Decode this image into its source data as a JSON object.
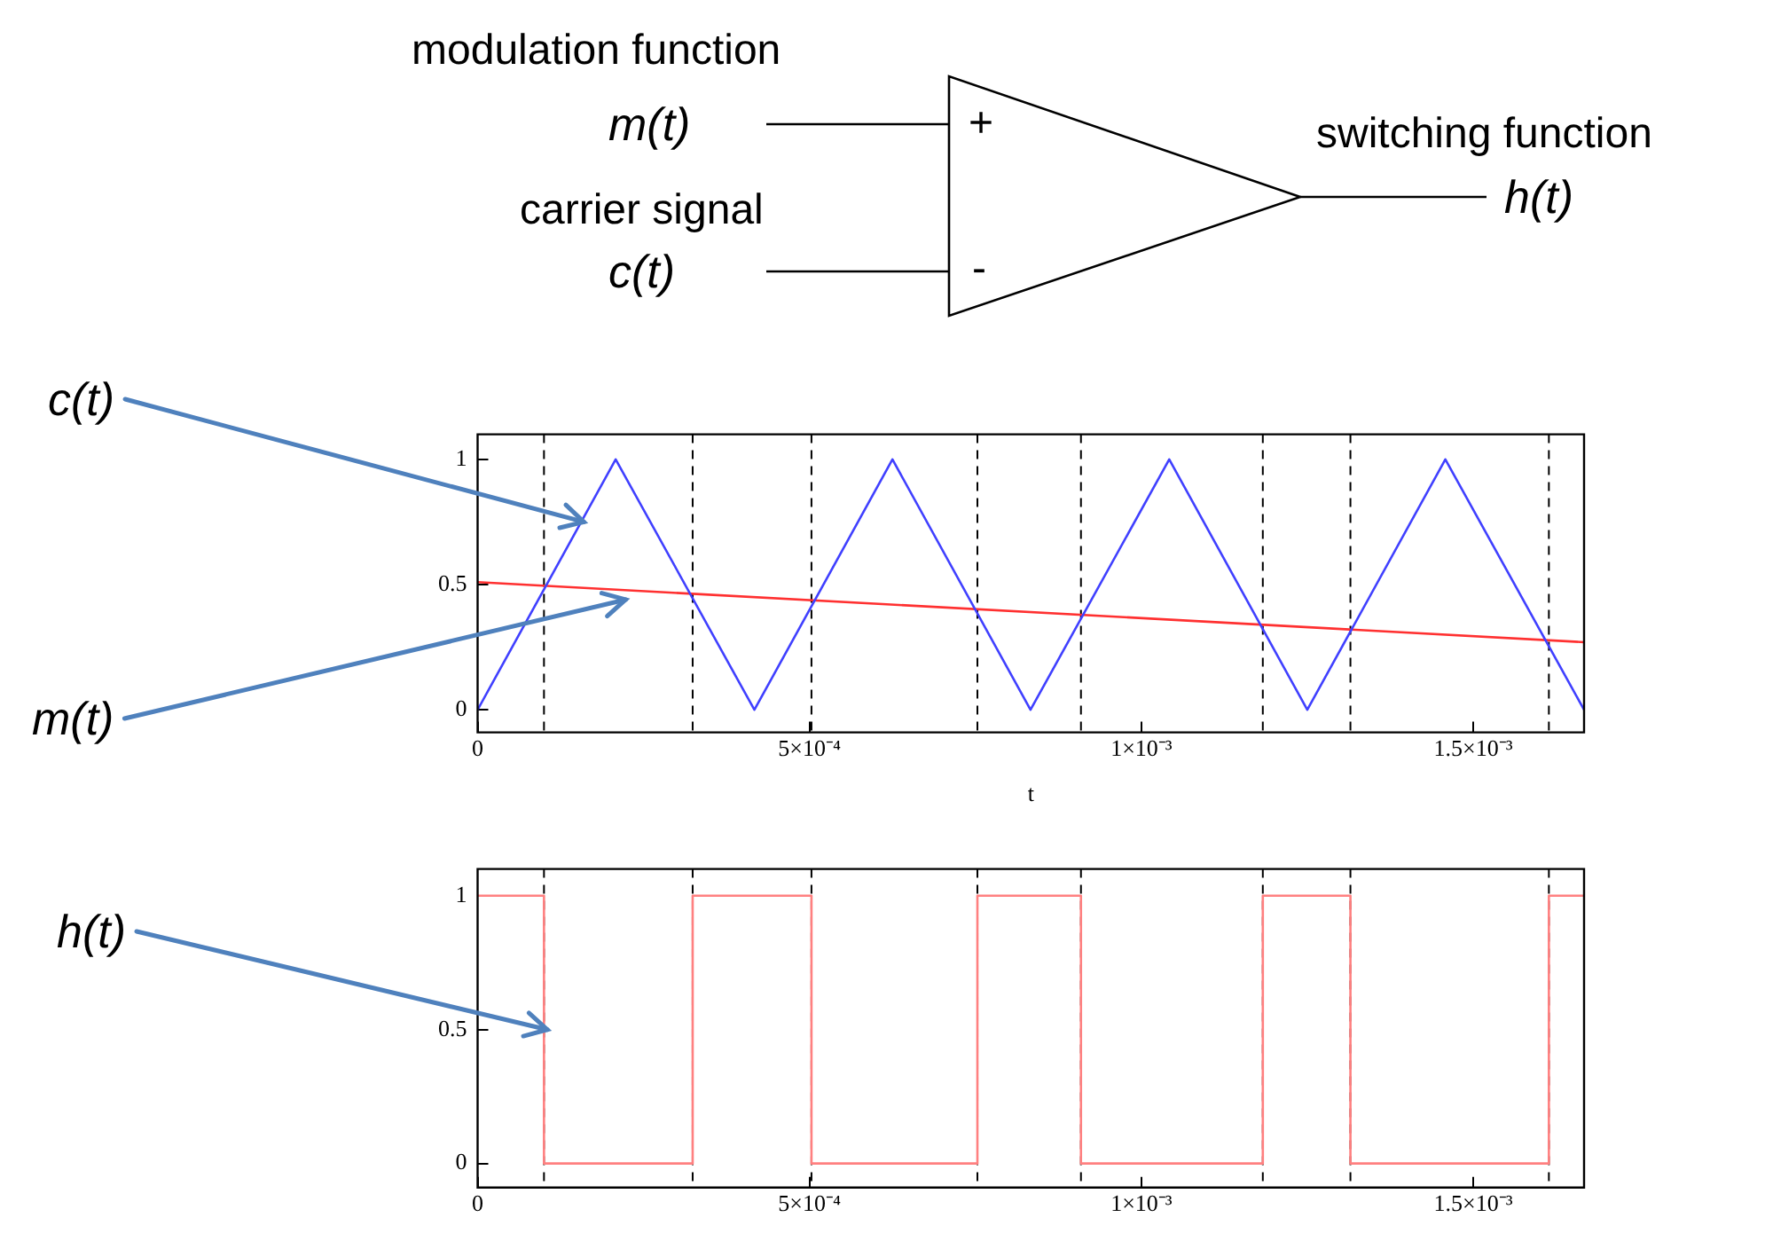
{
  "chart_data": [
    {
      "type": "other",
      "annotations": [
        "modulation function",
        "m(t)",
        "+",
        "carrier signal",
        "c(t)",
        "-",
        "switching function",
        "h(t)"
      ]
    },
    {
      "type": "line",
      "xlabel": "t",
      "xlim": [
        0,
        0.001667
      ],
      "ylim": [
        -0.09,
        1.1
      ],
      "xticks": [
        0,
        {
          "value": 0.0005,
          "label": "5×10⁻⁴"
        },
        {
          "value": 0.001,
          "label": "1×10⁻³"
        },
        {
          "value": 0.0015,
          "label": "1.5×10⁻³"
        }
      ],
      "yticks": [
        0,
        0.5,
        1
      ],
      "grid": false,
      "legend": false,
      "marker": "none",
      "line_style": "solid",
      "series": [
        {
          "color": "#4040ff",
          "x": [
            0,
            0.000208,
            0.000417,
            0.000625,
            0.000833,
            0.001042,
            0.00125,
            0.001458,
            0.001667
          ],
          "values": [
            0,
            1,
            0,
            1,
            0,
            1,
            0,
            1,
            0
          ]
        },
        {
          "color": "#ff3030",
          "x": [
            0,
            0.001667
          ],
          "values": [
            0.51,
            0.27
          ]
        }
      ],
      "ref_lines": [
        {
          "axis": "x",
          "value": 0.0001,
          "color": "#000000",
          "line_style": "dashed"
        },
        {
          "axis": "x",
          "value": 0.000324,
          "color": "#000000",
          "line_style": "dashed"
        },
        {
          "axis": "x",
          "value": 0.000503,
          "color": "#000000",
          "line_style": "dashed"
        },
        {
          "axis": "x",
          "value": 0.000753,
          "color": "#000000",
          "line_style": "dashed"
        },
        {
          "axis": "x",
          "value": 0.000909,
          "color": "#000000",
          "line_style": "dashed"
        },
        {
          "axis": "x",
          "value": 0.001183,
          "color": "#000000",
          "line_style": "dashed"
        },
        {
          "axis": "x",
          "value": 0.001315,
          "color": "#000000",
          "line_style": "dashed"
        },
        {
          "axis": "x",
          "value": 0.001614,
          "color": "#000000",
          "line_style": "dashed"
        }
      ],
      "annotations": [
        {
          "text": "c(t)",
          "x": 0.00016,
          "y": 0.75
        },
        {
          "text": "m(t)",
          "x": 0.000223,
          "y": 0.44
        }
      ]
    },
    {
      "type": "step",
      "xlim": [
        0,
        0.001667
      ],
      "ylim": [
        -0.09,
        1.1
      ],
      "xticks": [
        0,
        {
          "value": 0.0005,
          "label": "5×10⁻⁴"
        },
        {
          "value": 0.001,
          "label": "1×10⁻³"
        },
        {
          "value": 0.0015,
          "label": "1.5×10⁻³"
        }
      ],
      "yticks": [
        0,
        0.5,
        1
      ],
      "grid": false,
      "legend": false,
      "marker": "none",
      "line_style": "solid",
      "series": [
        {
          "color": "#ff8080",
          "x": [
            0,
            0.0001,
            0.000324,
            0.000503,
            0.000753,
            0.000909,
            0.001183,
            0.001315,
            0.001614,
            0.001667
          ],
          "values": [
            1,
            0,
            1,
            0,
            1,
            0,
            1,
            0,
            1,
            1
          ]
        }
      ],
      "ref_lines": [
        {
          "axis": "x",
          "value": 0.0001,
          "color": "#000000",
          "line_style": "dashed"
        },
        {
          "axis": "x",
          "value": 0.000324,
          "color": "#000000",
          "line_style": "dashed"
        },
        {
          "axis": "x",
          "value": 0.000503,
          "color": "#000000",
          "line_style": "dashed"
        },
        {
          "axis": "x",
          "value": 0.000753,
          "color": "#000000",
          "line_style": "dashed"
        },
        {
          "axis": "x",
          "value": 0.000909,
          "color": "#000000",
          "line_style": "dashed"
        },
        {
          "axis": "x",
          "value": 0.001183,
          "color": "#000000",
          "line_style": "dashed"
        },
        {
          "axis": "x",
          "value": 0.001315,
          "color": "#000000",
          "line_style": "dashed"
        },
        {
          "axis": "x",
          "value": 0.001614,
          "color": "#000000",
          "line_style": "dashed"
        }
      ],
      "annotations": [
        {
          "text": "h(t)",
          "x": 0.000105,
          "y": 0.5
        }
      ]
    }
  ]
}
